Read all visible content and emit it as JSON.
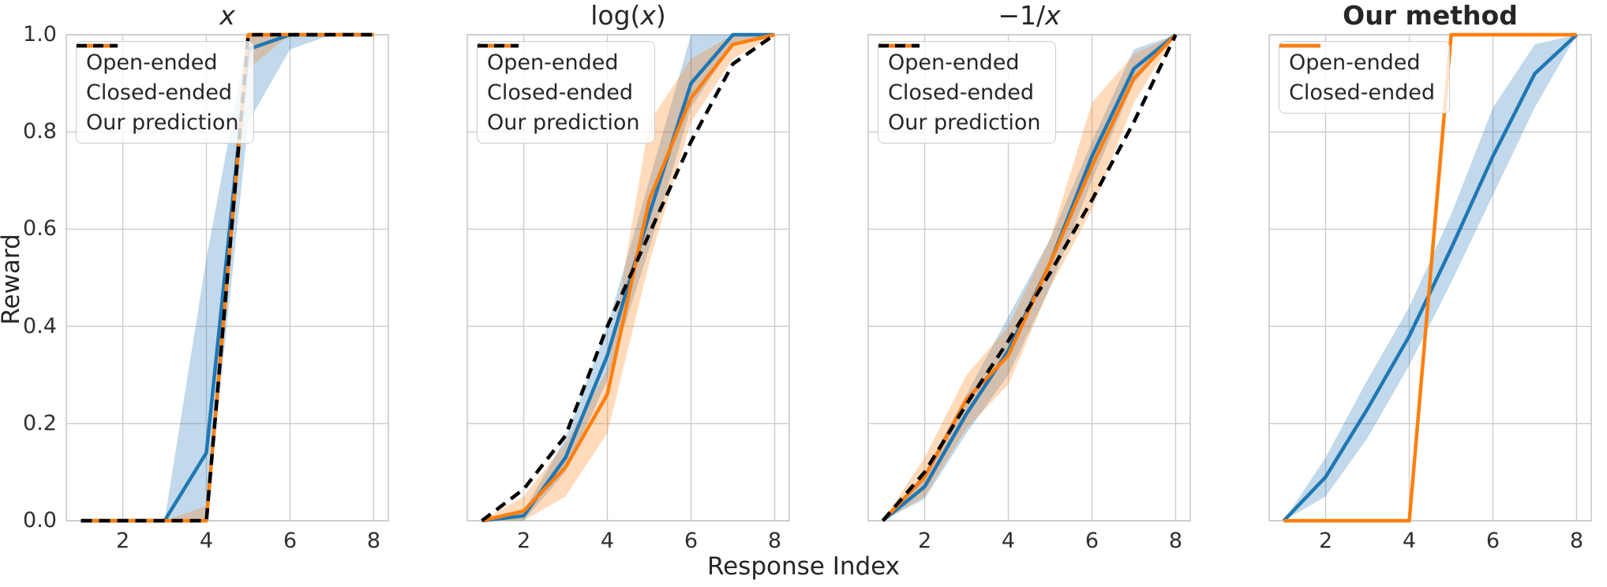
{
  "figure": {
    "ylabel": "Reward",
    "xlabel": "Response Index",
    "y_ticks": [
      "0.0",
      "0.2",
      "0.4",
      "0.6",
      "0.8",
      "1.0"
    ],
    "y_tick_values": [
      0,
      0.2,
      0.4,
      0.6,
      0.8,
      1.0
    ],
    "x_ticks": [
      "2",
      "4",
      "6",
      "8"
    ],
    "x_tick_values": [
      2,
      4,
      6,
      8
    ],
    "colors": {
      "open_ended": "#1f77b4",
      "closed_ended": "#ff7f0e",
      "prediction": "#000000",
      "grid": "#cccccc",
      "spine": "#c9c9c9",
      "text": "#262626"
    }
  },
  "chart_data": [
    {
      "type": "line",
      "title": "x",
      "title_math": true,
      "title_bold": false,
      "x": [
        1,
        2,
        3,
        4,
        5,
        6,
        7,
        8
      ],
      "xlim": [
        0.65,
        8.35
      ],
      "ylim": [
        0,
        1
      ],
      "grid": true,
      "legend_position": "upper-left",
      "series": [
        {
          "name": "Open-ended",
          "color_key": "open_ended",
          "dashed": false,
          "values": [
            0,
            0,
            0,
            0.14,
            0.97,
            1,
            1,
            1
          ],
          "band_lower": [
            0,
            0,
            0,
            0,
            0.82,
            0.97,
            1,
            1
          ],
          "band_upper": [
            0,
            0,
            0,
            0.54,
            1,
            1,
            1,
            1
          ]
        },
        {
          "name": "Closed-ended",
          "color_key": "closed_ended",
          "dashed": false,
          "values": [
            0,
            0,
            0,
            0,
            1,
            1,
            1,
            1
          ],
          "band_lower": [
            0,
            0,
            0,
            0,
            0.93,
            1,
            1,
            1
          ],
          "band_upper": [
            0,
            0,
            0,
            0.03,
            1,
            1,
            1,
            1
          ]
        },
        {
          "name": "Our prediction",
          "color_key": "prediction",
          "dashed": true,
          "values": [
            0,
            0,
            0,
            0,
            1,
            1,
            1,
            1
          ]
        }
      ]
    },
    {
      "type": "line",
      "title": "log(x)",
      "title_math": true,
      "title_bold": false,
      "x": [
        1,
        2,
        3,
        4,
        5,
        6,
        7,
        8
      ],
      "xlim": [
        0.65,
        8.35
      ],
      "ylim": [
        0,
        1
      ],
      "grid": true,
      "legend_position": "upper-left",
      "series": [
        {
          "name": "Open-ended",
          "color_key": "open_ended",
          "dashed": false,
          "values": [
            0,
            0.01,
            0.13,
            0.34,
            0.63,
            0.9,
            1,
            1
          ],
          "band_lower": [
            0,
            0,
            0.1,
            0.29,
            0.56,
            0.85,
            0.98,
            1
          ],
          "band_upper": [
            0,
            0.02,
            0.17,
            0.4,
            0.7,
            1,
            1,
            1
          ]
        },
        {
          "name": "Closed-ended",
          "color_key": "closed_ended",
          "dashed": false,
          "values": [
            0,
            0.02,
            0.11,
            0.26,
            0.66,
            0.87,
            0.98,
            1
          ],
          "band_lower": [
            0,
            0,
            0.05,
            0.18,
            0.53,
            0.82,
            0.95,
            1
          ],
          "band_upper": [
            0,
            0.05,
            0.16,
            0.31,
            0.82,
            0.95,
            1,
            1
          ]
        },
        {
          "name": "Our prediction",
          "color_key": "prediction",
          "dashed": true,
          "values": [
            0,
            0.065,
            0.175,
            0.4,
            0.59,
            0.78,
            0.94,
            1
          ]
        }
      ]
    },
    {
      "type": "line",
      "title": "−1/x",
      "title_math": true,
      "title_bold": false,
      "x": [
        1,
        2,
        3,
        4,
        5,
        6,
        7,
        8
      ],
      "xlim": [
        0.65,
        8.35
      ],
      "ylim": [
        0,
        1
      ],
      "grid": true,
      "legend_position": "upper-left",
      "series": [
        {
          "name": "Open-ended",
          "color_key": "open_ended",
          "dashed": false,
          "values": [
            0,
            0.07,
            0.22,
            0.35,
            0.53,
            0.75,
            0.93,
            1
          ],
          "band_lower": [
            0,
            0.045,
            0.18,
            0.3,
            0.48,
            0.7,
            0.9,
            1
          ],
          "band_upper": [
            0,
            0.1,
            0.26,
            0.42,
            0.58,
            0.78,
            0.97,
            1
          ]
        },
        {
          "name": "Closed-ended",
          "color_key": "closed_ended",
          "dashed": false,
          "values": [
            0,
            0.09,
            0.25,
            0.34,
            0.53,
            0.73,
            0.91,
            1
          ],
          "band_lower": [
            0,
            0.05,
            0.19,
            0.28,
            0.48,
            0.64,
            0.86,
            1
          ],
          "band_upper": [
            0,
            0.13,
            0.3,
            0.4,
            0.58,
            0.86,
            0.96,
            1
          ]
        },
        {
          "name": "Our prediction",
          "color_key": "prediction",
          "dashed": true,
          "values": [
            0,
            0.1,
            0.24,
            0.37,
            0.51,
            0.66,
            0.82,
            1
          ]
        }
      ]
    },
    {
      "type": "line",
      "title": "Our method",
      "title_math": false,
      "title_bold": true,
      "x": [
        1,
        2,
        3,
        4,
        5,
        6,
        7,
        8
      ],
      "xlim": [
        0.65,
        8.35
      ],
      "ylim": [
        0,
        1
      ],
      "grid": true,
      "legend_position": "upper-left",
      "series": [
        {
          "name": "Open-ended",
          "color_key": "open_ended",
          "dashed": false,
          "values": [
            0,
            0.09,
            0.23,
            0.38,
            0.56,
            0.75,
            0.92,
            1
          ],
          "band_lower": [
            0,
            0.05,
            0.17,
            0.32,
            0.49,
            0.67,
            0.85,
            1
          ],
          "band_upper": [
            0,
            0.13,
            0.29,
            0.44,
            0.63,
            0.85,
            0.98,
            1
          ]
        },
        {
          "name": "Closed-ended",
          "color_key": "closed_ended",
          "dashed": false,
          "values": [
            0,
            0,
            0,
            0,
            1,
            1,
            1,
            1
          ]
        }
      ]
    }
  ]
}
